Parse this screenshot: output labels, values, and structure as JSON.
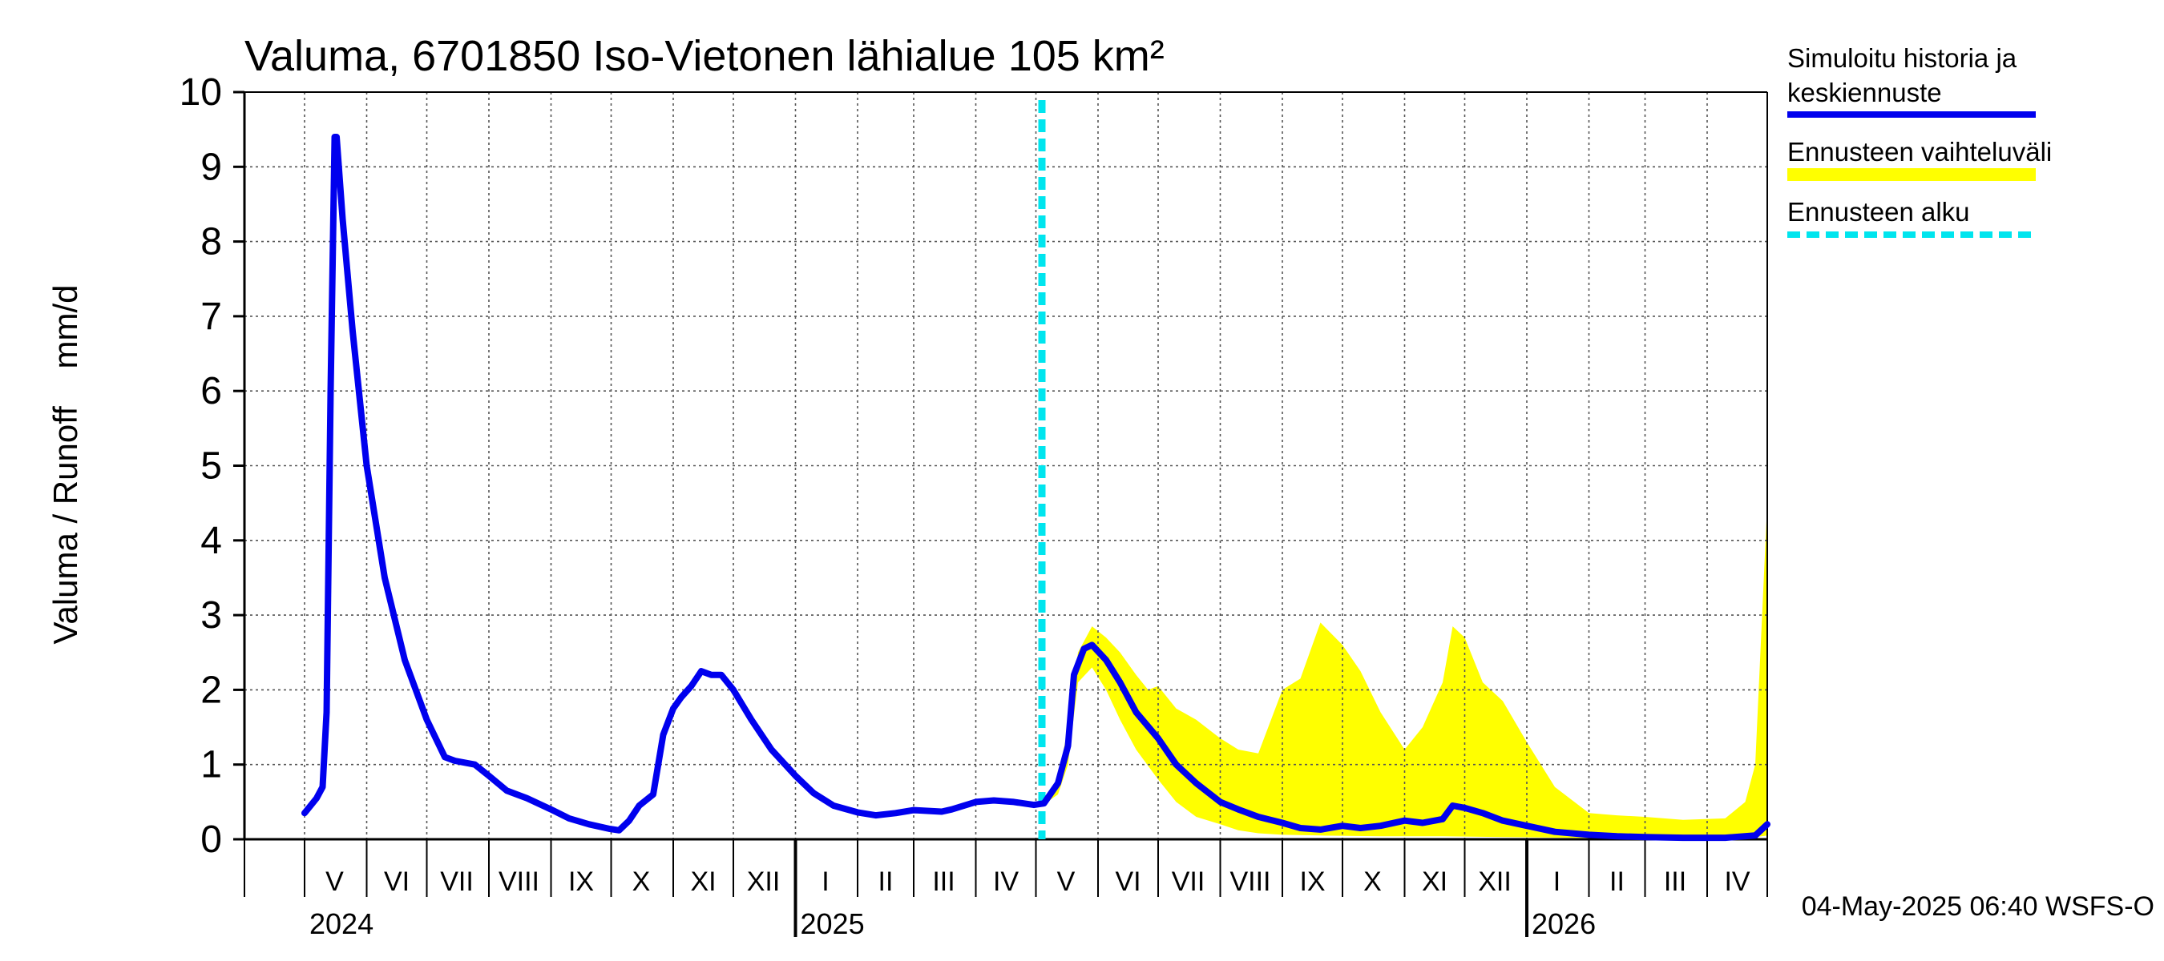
{
  "chart_data": {
    "type": "line",
    "title": "Valuma, 6701850 Iso-Vietonen lähialue 105 km²",
    "ylabel": "Valuma / Runoff    mm/d",
    "ylim": [
      0,
      10
    ],
    "yticks": [
      "0",
      "1",
      "2",
      "3",
      "4",
      "5",
      "6",
      "7",
      "8",
      "9",
      "10"
    ],
    "xlim": [
      "2024-04-01",
      "2026-05-01"
    ],
    "month_labels": [
      {
        "label": "V",
        "date": "2024-05-16"
      },
      {
        "label": "VI",
        "date": "2024-06-16"
      },
      {
        "label": "VII",
        "date": "2024-07-16"
      },
      {
        "label": "VIII",
        "date": "2024-08-16"
      },
      {
        "label": "IX",
        "date": "2024-09-16"
      },
      {
        "label": "X",
        "date": "2024-10-16"
      },
      {
        "label": "XI",
        "date": "2024-11-16"
      },
      {
        "label": "XII",
        "date": "2024-12-16"
      },
      {
        "label": "I",
        "date": "2025-01-16"
      },
      {
        "label": "II",
        "date": "2025-02-15"
      },
      {
        "label": "III",
        "date": "2025-03-16"
      },
      {
        "label": "IV",
        "date": "2025-04-16"
      },
      {
        "label": "V",
        "date": "2025-05-16"
      },
      {
        "label": "VI",
        "date": "2025-06-16"
      },
      {
        "label": "VII",
        "date": "2025-07-16"
      },
      {
        "label": "VIII",
        "date": "2025-08-16"
      },
      {
        "label": "IX",
        "date": "2025-09-16"
      },
      {
        "label": "X",
        "date": "2025-10-16"
      },
      {
        "label": "XI",
        "date": "2025-11-16"
      },
      {
        "label": "XII",
        "date": "2025-12-16"
      },
      {
        "label": "I",
        "date": "2026-01-16"
      },
      {
        "label": "II",
        "date": "2026-02-15"
      },
      {
        "label": "III",
        "date": "2026-03-16"
      },
      {
        "label": "IV",
        "date": "2026-04-16"
      }
    ],
    "year_labels": [
      {
        "label": "2024",
        "date": "2024-05-01"
      },
      {
        "label": "2025",
        "date": "2025-01-01"
      },
      {
        "label": "2026",
        "date": "2026-01-01"
      }
    ],
    "forecast_start": "2025-05-04",
    "series": [
      {
        "name": "Simuloitu historia ja keskiennuste",
        "color": "#0000ee",
        "points": [
          [
            "2024-05-01",
            0.35
          ],
          [
            "2024-05-07",
            0.55
          ],
          [
            "2024-05-10",
            0.7
          ],
          [
            "2024-05-12",
            1.7
          ],
          [
            "2024-05-14",
            6.0
          ],
          [
            "2024-05-16",
            9.4
          ],
          [
            "2024-05-17",
            9.4
          ],
          [
            "2024-05-20",
            8.3
          ],
          [
            "2024-05-25",
            6.8
          ],
          [
            "2024-06-01",
            5.0
          ],
          [
            "2024-06-10",
            3.5
          ],
          [
            "2024-06-20",
            2.4
          ],
          [
            "2024-07-01",
            1.6
          ],
          [
            "2024-07-10",
            1.1
          ],
          [
            "2024-07-15",
            1.05
          ],
          [
            "2024-07-25",
            1.0
          ],
          [
            "2024-08-01",
            0.85
          ],
          [
            "2024-08-10",
            0.65
          ],
          [
            "2024-08-20",
            0.55
          ],
          [
            "2024-09-01",
            0.4
          ],
          [
            "2024-09-10",
            0.28
          ],
          [
            "2024-09-20",
            0.2
          ],
          [
            "2024-09-30",
            0.14
          ],
          [
            "2024-10-05",
            0.12
          ],
          [
            "2024-10-10",
            0.25
          ],
          [
            "2024-10-15",
            0.45
          ],
          [
            "2024-10-22",
            0.6
          ],
          [
            "2024-10-27",
            1.4
          ],
          [
            "2024-11-01",
            1.75
          ],
          [
            "2024-11-05",
            1.9
          ],
          [
            "2024-11-10",
            2.05
          ],
          [
            "2024-11-15",
            2.25
          ],
          [
            "2024-11-20",
            2.2
          ],
          [
            "2024-11-25",
            2.2
          ],
          [
            "2024-12-01",
            2.0
          ],
          [
            "2024-12-10",
            1.6
          ],
          [
            "2024-12-20",
            1.2
          ],
          [
            "2025-01-01",
            0.85
          ],
          [
            "2025-01-10",
            0.62
          ],
          [
            "2025-01-20",
            0.45
          ],
          [
            "2025-02-01",
            0.36
          ],
          [
            "2025-02-10",
            0.32
          ],
          [
            "2025-02-20",
            0.35
          ],
          [
            "2025-03-01",
            0.39
          ],
          [
            "2025-03-15",
            0.37
          ],
          [
            "2025-03-20",
            0.4
          ],
          [
            "2025-04-01",
            0.5
          ],
          [
            "2025-04-10",
            0.52
          ],
          [
            "2025-04-20",
            0.5
          ],
          [
            "2025-04-30",
            0.46
          ],
          [
            "2025-05-05",
            0.48
          ],
          [
            "2025-05-12",
            0.75
          ],
          [
            "2025-05-17",
            1.25
          ],
          [
            "2025-05-20",
            2.2
          ],
          [
            "2025-05-25",
            2.55
          ],
          [
            "2025-05-29",
            2.6
          ],
          [
            "2025-06-05",
            2.4
          ],
          [
            "2025-06-12",
            2.1
          ],
          [
            "2025-06-20",
            1.7
          ],
          [
            "2025-07-01",
            1.35
          ],
          [
            "2025-07-10",
            1.0
          ],
          [
            "2025-07-20",
            0.75
          ],
          [
            "2025-08-01",
            0.5
          ],
          [
            "2025-08-10",
            0.4
          ],
          [
            "2025-08-20",
            0.3
          ],
          [
            "2025-09-01",
            0.22
          ],
          [
            "2025-09-10",
            0.15
          ],
          [
            "2025-09-20",
            0.13
          ],
          [
            "2025-10-01",
            0.18
          ],
          [
            "2025-10-10",
            0.15
          ],
          [
            "2025-10-20",
            0.18
          ],
          [
            "2025-11-01",
            0.25
          ],
          [
            "2025-11-10",
            0.22
          ],
          [
            "2025-11-20",
            0.27
          ],
          [
            "2025-11-25",
            0.45
          ],
          [
            "2025-12-01",
            0.42
          ],
          [
            "2025-12-10",
            0.35
          ],
          [
            "2025-12-20",
            0.25
          ],
          [
            "2026-01-01",
            0.18
          ],
          [
            "2026-01-15",
            0.1
          ],
          [
            "2026-02-01",
            0.06
          ],
          [
            "2026-02-15",
            0.04
          ],
          [
            "2026-03-01",
            0.03
          ],
          [
            "2026-03-20",
            0.02
          ],
          [
            "2026-04-10",
            0.02
          ],
          [
            "2026-04-25",
            0.05
          ],
          [
            "2026-05-01",
            0.2
          ]
        ]
      },
      {
        "name": "Ennusteen vaihteluväli",
        "color": "#ffff00",
        "upper": [
          [
            "2025-05-04",
            0.5
          ],
          [
            "2025-05-12",
            0.8
          ],
          [
            "2025-05-17",
            1.5
          ],
          [
            "2025-05-22",
            2.5
          ],
          [
            "2025-05-29",
            2.85
          ],
          [
            "2025-06-05",
            2.7
          ],
          [
            "2025-06-12",
            2.5
          ],
          [
            "2025-06-20",
            2.2
          ],
          [
            "2025-06-26",
            2.0
          ],
          [
            "2025-07-01",
            2.05
          ],
          [
            "2025-07-10",
            1.75
          ],
          [
            "2025-07-20",
            1.6
          ],
          [
            "2025-08-01",
            1.35
          ],
          [
            "2025-08-10",
            1.2
          ],
          [
            "2025-08-20",
            1.15
          ],
          [
            "2025-09-01",
            2.0
          ],
          [
            "2025-09-10",
            2.15
          ],
          [
            "2025-09-20",
            2.9
          ],
          [
            "2025-10-01",
            2.6
          ],
          [
            "2025-10-10",
            2.25
          ],
          [
            "2025-10-20",
            1.7
          ],
          [
            "2025-11-01",
            1.2
          ],
          [
            "2025-11-10",
            1.5
          ],
          [
            "2025-11-20",
            2.1
          ],
          [
            "2025-11-25",
            2.85
          ],
          [
            "2025-12-01",
            2.7
          ],
          [
            "2025-12-10",
            2.1
          ],
          [
            "2025-12-20",
            1.85
          ],
          [
            "2026-01-01",
            1.3
          ],
          [
            "2026-01-15",
            0.7
          ],
          [
            "2026-02-01",
            0.35
          ],
          [
            "2026-02-15",
            0.32
          ],
          [
            "2026-03-01",
            0.3
          ],
          [
            "2026-03-20",
            0.26
          ],
          [
            "2026-04-10",
            0.28
          ],
          [
            "2026-04-20",
            0.5
          ],
          [
            "2026-04-25",
            1.0
          ],
          [
            "2026-05-01",
            4.5
          ]
        ],
        "lower": [
          [
            "2025-05-04",
            0.45
          ],
          [
            "2025-05-12",
            0.6
          ],
          [
            "2025-05-17",
            1.0
          ],
          [
            "2025-05-22",
            2.1
          ],
          [
            "2025-05-29",
            2.3
          ],
          [
            "2025-06-05",
            2.0
          ],
          [
            "2025-06-12",
            1.6
          ],
          [
            "2025-06-20",
            1.2
          ],
          [
            "2025-07-01",
            0.8
          ],
          [
            "2025-07-10",
            0.5
          ],
          [
            "2025-07-20",
            0.3
          ],
          [
            "2025-08-01",
            0.2
          ],
          [
            "2025-08-10",
            0.12
          ],
          [
            "2025-08-20",
            0.08
          ],
          [
            "2025-09-01",
            0.06
          ],
          [
            "2025-09-20",
            0.05
          ],
          [
            "2025-10-20",
            0.04
          ],
          [
            "2025-11-20",
            0.04
          ],
          [
            "2025-12-20",
            0.03
          ],
          [
            "2026-01-20",
            0.02
          ],
          [
            "2026-03-01",
            0.01
          ],
          [
            "2026-04-20",
            0.01
          ],
          [
            "2026-05-01",
            0.05
          ]
        ]
      },
      {
        "name": "Ennusteen alku",
        "color": "#00e5ee"
      }
    ],
    "legend": [
      {
        "label": "Simuloitu historia ja",
        "label2": "keskiennuste",
        "color": "#0000ee",
        "style": "solid"
      },
      {
        "label": "Ennusteen vaihteluväli",
        "color": "#ffff00",
        "style": "thick"
      },
      {
        "label": "Ennusteen alku",
        "color": "#00e5ee",
        "style": "dashed"
      }
    ],
    "legend_position": "right",
    "grid": true,
    "grid_style": "dotted"
  },
  "footer": "04-May-2025 06:40 WSFS-O"
}
